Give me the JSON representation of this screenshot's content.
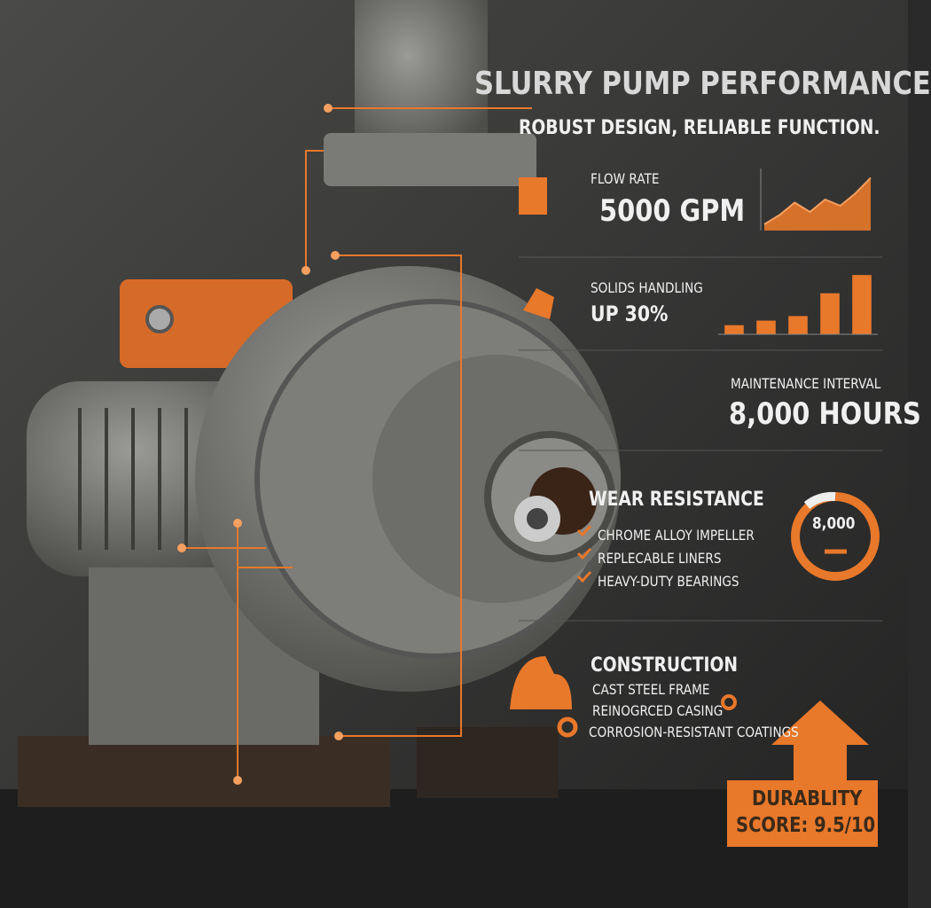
{
  "header": {
    "title": "SLURRY PUMP PERFORMANCE",
    "subtitle": "ROBUST DESIGN, RELIABLE FUNCTION."
  },
  "flow_rate": {
    "label": "FLOW RATE",
    "value": "5000 GPM",
    "chart": {
      "type": "area",
      "values": [
        1,
        2.5,
        4.5,
        3,
        5,
        4,
        6,
        8.5
      ],
      "ylim": [
        0,
        10
      ],
      "color": "#e8782a"
    }
  },
  "solids_handling": {
    "label": "SOLIDS HANDLING",
    "value": "UP 30%",
    "chart": {
      "type": "bar",
      "values": [
        1,
        1.5,
        2,
        4.5,
        6.5
      ],
      "ylim": [
        0,
        7
      ],
      "color": "#e8782a"
    }
  },
  "maintenance": {
    "label": "MAINTENANCE INTERVAL",
    "value": "8,000 HOURS"
  },
  "wear_resistance": {
    "title": "WEAR RESISTANCE",
    "items": [
      "CHROME ALLOY IMPELLER",
      "REPLECABLE LINERS",
      "HEAVY-DUTY BEARINGS"
    ],
    "gauge_label": "8,000"
  },
  "construction": {
    "title": "CONSTRUCTION",
    "items": [
      "CAST STEEL FRAME",
      "REINOGRCED CASING",
      "CORROSION-RESISTANT COATINGS"
    ]
  },
  "durability": {
    "line1": "DURABLITY",
    "line2": "SCORE: 9.5/10"
  }
}
